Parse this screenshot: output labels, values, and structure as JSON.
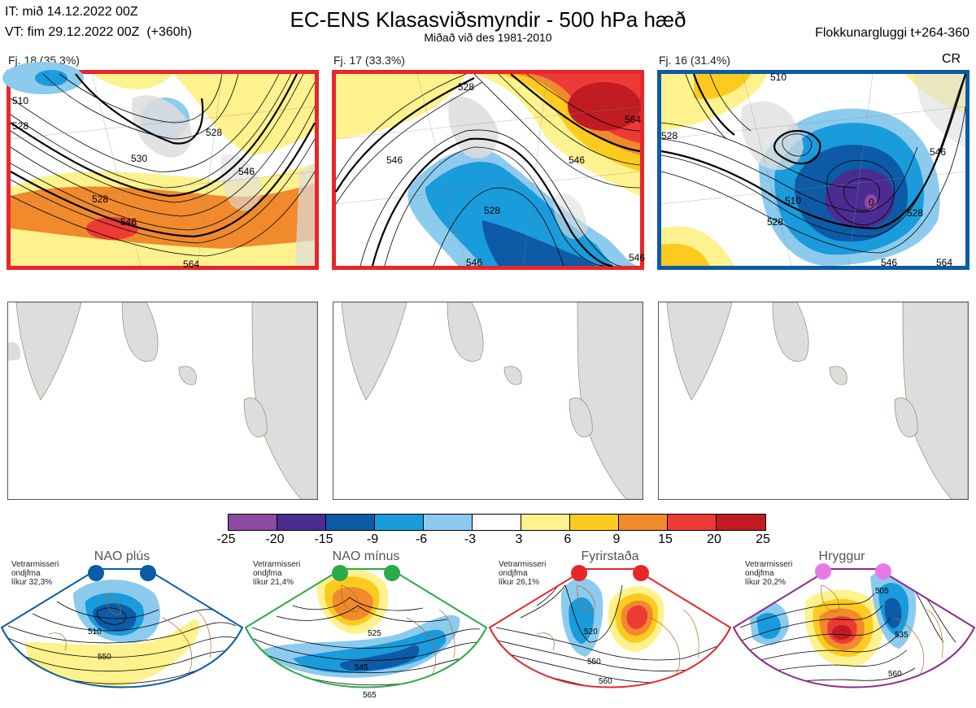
{
  "header": {
    "it_line": "IT: mið 14.12.2022 00Z",
    "vt_line": "VT: fim 29.12.2022 00Z  (+360h)",
    "title": "EC-ENS Klasasviðsmyndir - 500 hPa hæð",
    "subtitle": "Miðað við des 1981-2010",
    "window": "Flokkunargluggi t+264-360",
    "corner_tag": "CR"
  },
  "clusters": [
    {
      "label": "Fj. 18 (35.3%)",
      "frame_color": "#e8262a",
      "contour_labels": [
        "510",
        "528",
        "530",
        "546",
        "528",
        "546",
        "564"
      ]
    },
    {
      "label": "Fj. 17 (33.3%)",
      "frame_color": "#e8262a",
      "contour_labels": [
        "528",
        "546",
        "546",
        "528",
        "546",
        "564",
        "546"
      ]
    },
    {
      "label": "Fj. 16 (31.4%)",
      "frame_color": "#0d5ba6",
      "contour_labels": [
        "510",
        "528",
        "510",
        "528",
        "546",
        "528",
        "546",
        "564",
        "0"
      ]
    }
  ],
  "colorbar": {
    "colors": [
      "#8c4aa0",
      "#4b2c91",
      "#0d5ba6",
      "#1a9bdb",
      "#8ccbee",
      "#ffffff",
      "#fdf28e",
      "#fdcb1f",
      "#f08a2c",
      "#ee3a36",
      "#c01c22"
    ],
    "ticks": [
      "-25",
      "-20",
      "-15",
      "-9",
      "-6",
      "-3",
      "3",
      "6",
      "9",
      "15",
      "20",
      "25"
    ]
  },
  "regimes": [
    {
      "name": "NAO plús",
      "info": "Vetrarmisseri\nondjfma\nlíkur 32,3%",
      "color": "#0d5ba6",
      "dot_color": "#0d5ba6",
      "contour_labels": [
        "510",
        "550"
      ]
    },
    {
      "name": "NAO mínus",
      "info": "Vetrarmisseri\nondjfma\nlíkur 21,4%",
      "color": "#2aaa48",
      "dot_color": "#2aaa48",
      "contour_labels": [
        "525",
        "545",
        "565"
      ]
    },
    {
      "name": "Fyrirstaða",
      "info": "Vetrarmisseri\nondjfma\nlíkur 26,1%",
      "color": "#e8262a",
      "dot_color": "#e8262a",
      "contour_labels": [
        "520",
        "550",
        "560"
      ]
    },
    {
      "name": "Hryggur",
      "info": "Vetrarmisseri\nondjfma\nlíkur 20,2%",
      "color": "#8b2d8e",
      "dot_color": "#e87ae8",
      "contour_labels": [
        "505",
        "535",
        "560"
      ]
    }
  ]
}
